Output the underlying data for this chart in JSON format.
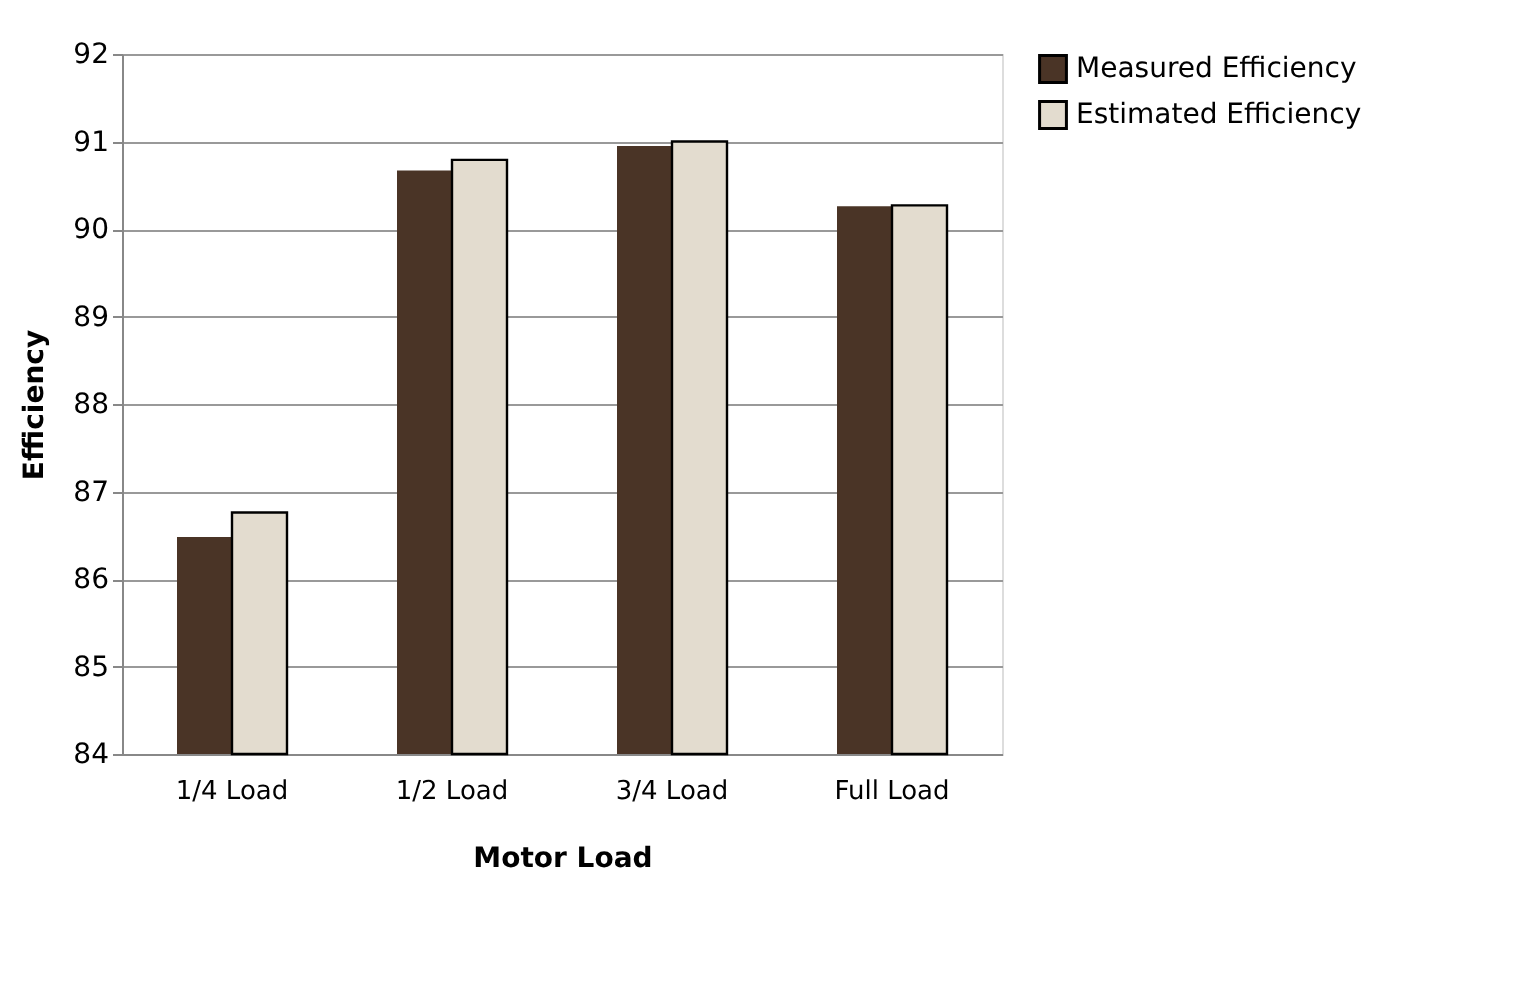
{
  "chart_data": {
    "type": "bar",
    "xlabel": "Motor Load",
    "ylabel": "Efficiency",
    "categories": [
      "1/4 Load",
      "1/2 Load",
      "3/4 Load",
      "Full Load"
    ],
    "series": [
      {
        "name": "Measured Efficiency",
        "color": "#4a3426",
        "values": [
          86.48,
          90.67,
          90.95,
          90.26
        ]
      },
      {
        "name": "Estimated Efficiency",
        "color": "#e3dccf",
        "values": [
          86.76,
          90.79,
          91.0,
          90.27
        ]
      }
    ],
    "ylim": [
      84,
      92
    ],
    "yticks": [
      84,
      85,
      86,
      87,
      88,
      89,
      90,
      91,
      92
    ],
    "grid": "y",
    "legend": "right"
  }
}
